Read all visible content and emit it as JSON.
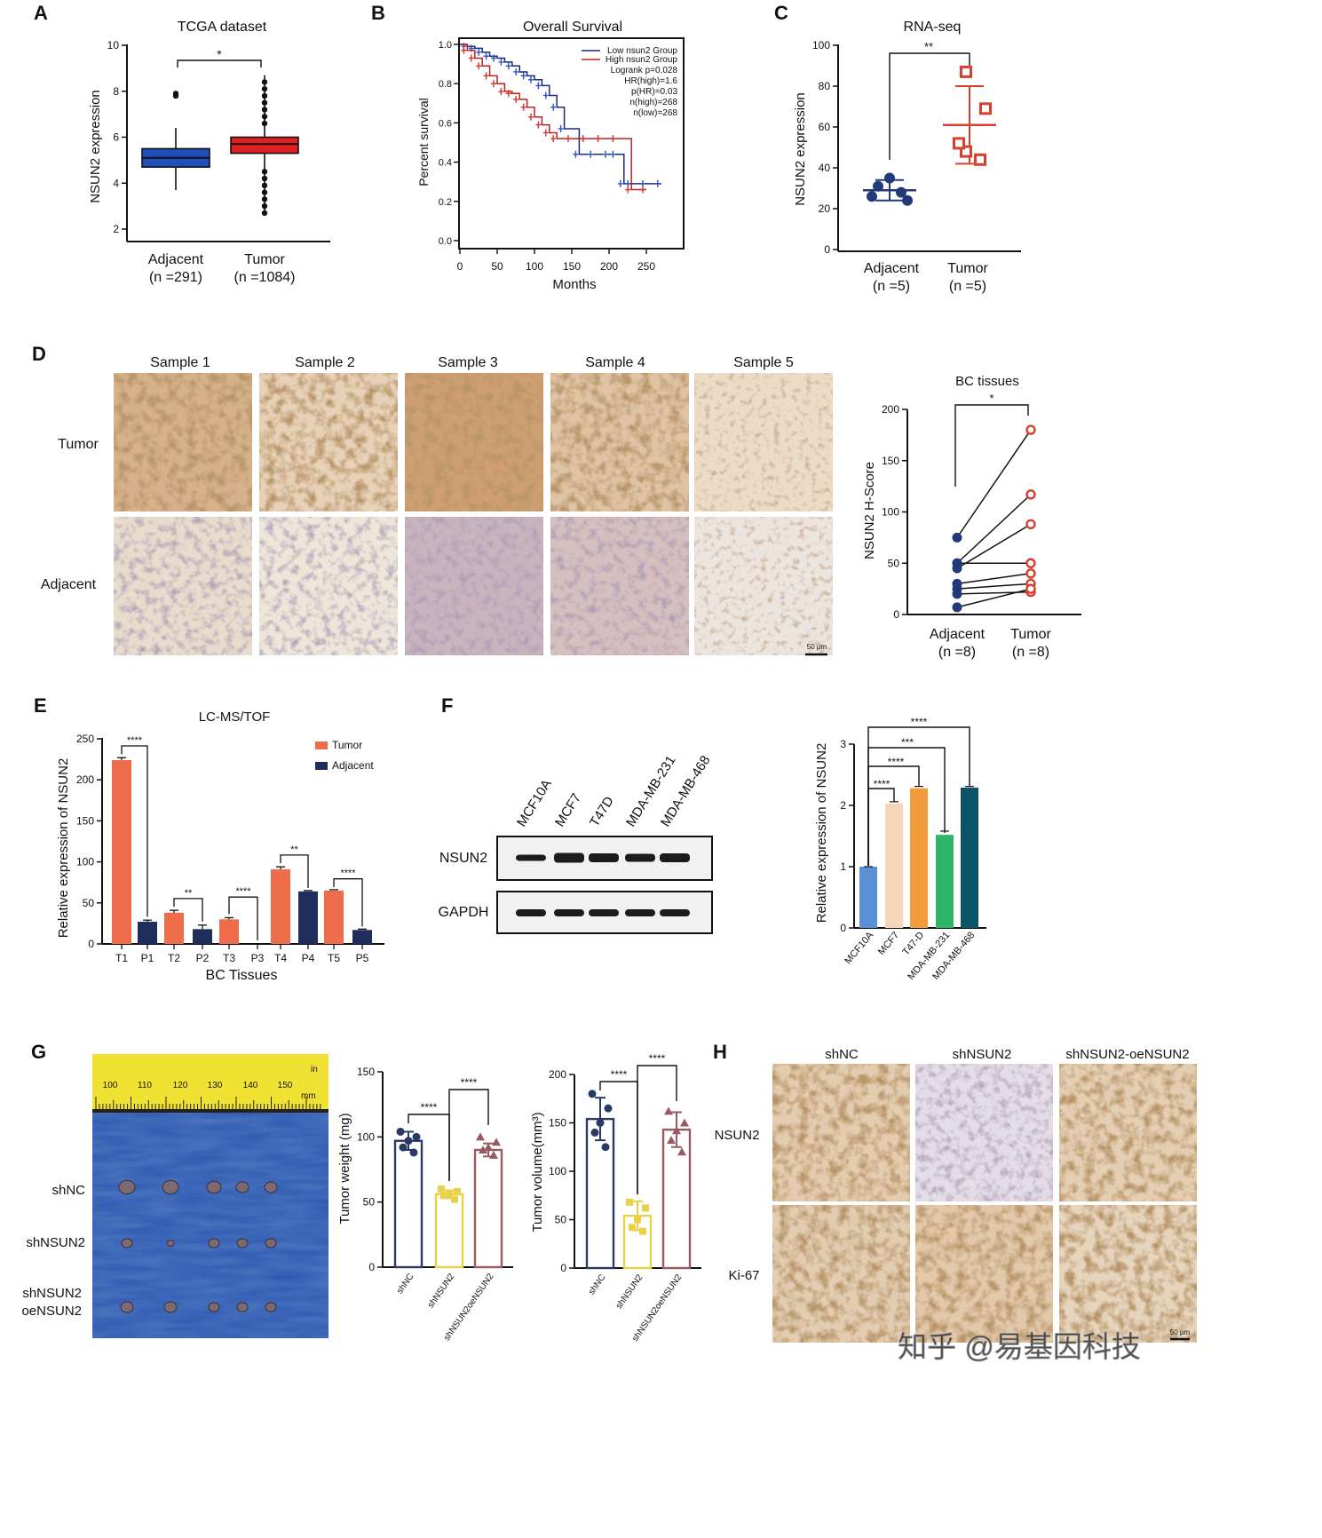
{
  "panels": {
    "A": {
      "letter": "A",
      "title": "TCGA dataset",
      "ylabel": "NSUN2 expression",
      "yticks": [
        "2",
        "4",
        "6",
        "8",
        "10"
      ],
      "groups": [
        {
          "name": "Adjacent",
          "n": "(n =291)"
        },
        {
          "name": "Tumor",
          "n": "(n =1084)"
        }
      ],
      "sig": "*",
      "colors": {
        "adjacent": "#1f4fb8",
        "tumor": "#e02020"
      }
    },
    "B": {
      "letter": "B",
      "title": "Overall Survival",
      "ylabel": "Percent survival",
      "xlabel": "Months",
      "yticks": [
        "0.0",
        "0.2",
        "0.4",
        "0.6",
        "0.8",
        "1.0"
      ],
      "xticks": [
        "0",
        "50",
        "100",
        "150",
        "200",
        "250"
      ],
      "legend": [
        "Low nsun2 Group",
        "High nsun2 Group"
      ],
      "stats": [
        "Logrank p=0.028",
        "HR(high)=1.6",
        "p(HR)=0.03",
        "n(high)=268",
        "n(low)=268"
      ]
    },
    "C": {
      "letter": "C",
      "title": "RNA-seq",
      "ylabel": "NSUN2 expression",
      "yticks": [
        "0",
        "20",
        "40",
        "60",
        "80",
        "100"
      ],
      "groups": [
        {
          "name": "Adjacent",
          "n": "(n =5)"
        },
        {
          "name": "Tumor",
          "n": "(n =5)"
        }
      ],
      "sig": "**"
    },
    "D": {
      "letter": "D",
      "samples": [
        "Sample 1",
        "Sample 2",
        "Sample 3",
        "Sample 4",
        "Sample 5"
      ],
      "rows": [
        "Tumor",
        "Adjacent"
      ],
      "scale": "50 μm",
      "chart_title": "BC tissues",
      "ylabel": "NSUN2 H-Score",
      "yticks": [
        "0",
        "50",
        "100",
        "150",
        "200"
      ],
      "groups": [
        {
          "name": "Adjacent",
          "n": "(n =8)"
        },
        {
          "name": "Tumor",
          "n": "(n =8)"
        }
      ],
      "sig": "*"
    },
    "E": {
      "letter": "E",
      "title": "LC-MS/TOF",
      "ylabel": "Relative expression of NSUN2",
      "xlabel": "BC Tissues",
      "yticks": [
        "0",
        "50",
        "100",
        "150",
        "200",
        "250"
      ],
      "legend": [
        "Tumor",
        "Adjacent"
      ],
      "sigs": [
        "****",
        "**",
        "****",
        "**",
        "****"
      ]
    },
    "F": {
      "letter": "F",
      "lanes": [
        "MCF10A",
        "MCF7",
        "T47D",
        "MDA-MB-231",
        "MDA-MB-468"
      ],
      "blots": [
        "NSUN2",
        "GAPDH"
      ],
      "ylabel": "Relative expression of NSUN2",
      "yticks": [
        "0",
        "1",
        "2",
        "3"
      ],
      "bar_labels": [
        "MCF10A",
        "MCF7",
        "T47-D",
        "MDA-MB-231",
        "MDA-MB-468"
      ],
      "sigs": [
        "****",
        "***",
        "****",
        "****"
      ]
    },
    "G": {
      "letter": "G",
      "ruler_numbers": [
        "100",
        "110",
        "120",
        "130",
        "140",
        "150"
      ],
      "ruler_units": [
        "in",
        "mm"
      ],
      "photo_rows": [
        "shNC",
        "shNSUN2",
        "shNSUN2",
        "oeNSUN2"
      ],
      "weight_ylabel": "Tumor weight (mg)",
      "weight_yticks": [
        "0",
        "50",
        "100",
        "150"
      ],
      "volume_ylabel": "Tumor volume(mm³)",
      "volume_yticks": [
        "0",
        "50",
        "100",
        "150",
        "200"
      ],
      "groups": [
        "shNC",
        "shNSUN2",
        "shNSUN2oeNSUN2"
      ],
      "sig": "****"
    },
    "H": {
      "letter": "H",
      "cols": [
        "shNC",
        "shNSUN2",
        "shNSUN2-oeNSUN2"
      ],
      "rows": [
        "NSUN2",
        "Ki-67"
      ],
      "scale": "50 μm",
      "watermark": "知乎 @易基因科技"
    }
  },
  "chart_data": [
    {
      "id": "A",
      "type": "box",
      "title": "TCGA dataset",
      "ylabel": "NSUN2 expression",
      "ylim": [
        2,
        10
      ],
      "categories": [
        "Adjacent",
        "Tumor"
      ],
      "boxes": [
        {
          "name": "Adjacent",
          "whisker_low": 3.7,
          "q1": 4.7,
          "median": 5.1,
          "q3": 5.5,
          "whisker_high": 6.4,
          "outliers": [
            7.8,
            7.9
          ]
        },
        {
          "name": "Tumor",
          "whisker_low": 2.6,
          "q1": 5.3,
          "median": 5.7,
          "q3": 6.0,
          "whisker_high": 8.7,
          "outliers": [
            2.7,
            3.0,
            3.3,
            3.6,
            3.9,
            4.2,
            4.5,
            6.6,
            6.9,
            7.2,
            7.5,
            7.8,
            8.1,
            8.4
          ]
        }
      ]
    },
    {
      "id": "B",
      "type": "line",
      "title": "Overall Survival",
      "xlabel": "Months",
      "ylabel": "Percent survival",
      "xlim": [
        0,
        300
      ],
      "ylim": [
        0,
        1
      ],
      "series": [
        {
          "name": "Low nsun2 Group",
          "x": [
            0,
            10,
            20,
            30,
            40,
            50,
            60,
            70,
            80,
            90,
            100,
            110,
            120,
            130,
            140,
            160,
            180,
            200,
            210,
            220,
            230,
            250,
            270
          ],
          "y": [
            1.0,
            0.99,
            0.98,
            0.96,
            0.94,
            0.93,
            0.91,
            0.89,
            0.86,
            0.84,
            0.82,
            0.79,
            0.74,
            0.68,
            0.57,
            0.44,
            0.44,
            0.44,
            0.44,
            0.29,
            0.29,
            0.29,
            0.29
          ]
        },
        {
          "name": "High nsun2 Group",
          "x": [
            0,
            10,
            20,
            30,
            40,
            50,
            60,
            70,
            80,
            90,
            100,
            110,
            120,
            130,
            150,
            170,
            190,
            210,
            230,
            250
          ],
          "y": [
            1.0,
            0.97,
            0.93,
            0.89,
            0.84,
            0.8,
            0.76,
            0.75,
            0.72,
            0.68,
            0.63,
            0.59,
            0.55,
            0.52,
            0.52,
            0.52,
            0.52,
            0.52,
            0.26,
            0.26
          ]
        }
      ]
    },
    {
      "id": "C",
      "type": "scatter",
      "title": "RNA-seq",
      "ylabel": "NSUN2 expression",
      "ylim": [
        0,
        100
      ],
      "categories": [
        "Adjacent",
        "Tumor"
      ],
      "series": [
        {
          "name": "Adjacent",
          "values": [
            35,
            31,
            28,
            26,
            24
          ],
          "mean": 29,
          "sd": 5
        },
        {
          "name": "Tumor",
          "values": [
            87,
            69,
            48,
            44,
            52
          ],
          "mean": 61,
          "sd": 19
        }
      ]
    },
    {
      "id": "D",
      "type": "line",
      "title": "BC tissues",
      "ylabel": "NSUN2 H-Score",
      "ylim": [
        0,
        200
      ],
      "categories": [
        "Adjacent",
        "Tumor"
      ],
      "pairs": [
        [
          75,
          180
        ],
        [
          50,
          117
        ],
        [
          45,
          88
        ],
        [
          50,
          50
        ],
        [
          30,
          40
        ],
        [
          25,
          30
        ],
        [
          20,
          22
        ],
        [
          7,
          25
        ]
      ]
    },
    {
      "id": "E",
      "type": "bar",
      "title": "LC-MS/TOF",
      "xlabel": "BC Tissues",
      "ylabel": "Relative expression of NSUN2",
      "ylim": [
        0,
        250
      ],
      "categories": [
        "T1",
        "P1",
        "T2",
        "P2",
        "T3",
        "P3",
        "T4",
        "P4",
        "T5",
        "P5"
      ],
      "values": [
        224,
        27,
        38,
        18,
        30,
        0,
        91,
        64,
        65,
        17
      ],
      "errors": [
        3,
        2,
        3,
        5,
        2,
        0,
        3,
        0,
        0,
        0
      ],
      "series_of": [
        "Tumor",
        "Adjacent",
        "Tumor",
        "Adjacent",
        "Tumor",
        "Adjacent",
        "Tumor",
        "Adjacent",
        "Tumor",
        "Adjacent"
      ]
    },
    {
      "id": "F",
      "type": "bar",
      "ylabel": "Relative expression of NSUN2",
      "ylim": [
        0,
        3
      ],
      "categories": [
        "MCF10A",
        "MCF7",
        "T47-D",
        "MDA-MB-231",
        "MDA-MB-468"
      ],
      "values": [
        1.0,
        2.03,
        2.28,
        1.52,
        2.29
      ],
      "errors": [
        0.0,
        0.03,
        0.03,
        0.06,
        0.02
      ],
      "colors": [
        "#5b8fd6",
        "#f6d6b8",
        "#f39c3b",
        "#2fb56a",
        "#0d5468"
      ]
    },
    {
      "id": "G-weight",
      "type": "bar",
      "ylabel": "Tumor weight (mg)",
      "ylim": [
        0,
        150
      ],
      "categories": [
        "shNC",
        "shNSUN2",
        "shNSUN2oeNSUN2"
      ],
      "values": [
        97,
        56,
        90
      ],
      "errors": [
        7,
        3,
        5
      ],
      "points": [
        [
          104,
          100,
          97,
          92,
          88
        ],
        [
          60,
          58,
          56,
          55,
          52
        ],
        [
          100,
          96,
          92,
          90,
          86
        ]
      ],
      "colors": [
        "#2a3a66",
        "#e7d24a",
        "#9a5a62"
      ]
    },
    {
      "id": "G-volume",
      "type": "bar",
      "ylabel": "Tumor volume(mm³)",
      "ylim": [
        0,
        200
      ],
      "categories": [
        "shNC",
        "shNSUN2",
        "shNSUN2oeNSUN2"
      ],
      "values": [
        154,
        54,
        143
      ],
      "errors": [
        22,
        15,
        18
      ],
      "points": [
        [
          180,
          165,
          150,
          140,
          125
        ],
        [
          68,
          62,
          50,
          42,
          38
        ],
        [
          162,
          150,
          142,
          132,
          120
        ]
      ],
      "colors": [
        "#2a3a66",
        "#e7d24a",
        "#9a5a62"
      ]
    }
  ]
}
